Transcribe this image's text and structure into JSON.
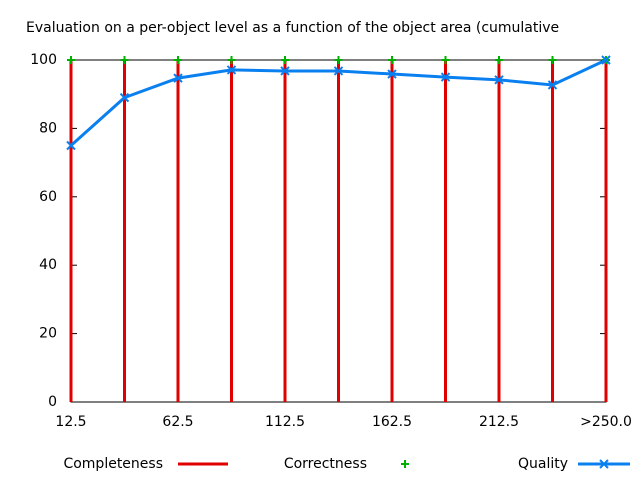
{
  "chart_data": {
    "type": "line",
    "title": "Evaluation on a per-object level as a function of the object area (cumulative",
    "categories": [
      "12.5",
      null,
      "62.5",
      null,
      "112.5",
      null,
      "162.5",
      null,
      "212.5",
      null,
      ">250.0"
    ],
    "ylim": [
      0,
      100
    ],
    "yticks": [
      0,
      20,
      40,
      60,
      80,
      100
    ],
    "series": [
      {
        "name": "Completeness",
        "color": "#e00000",
        "style": "impulses",
        "values": [
          100,
          100,
          100,
          100,
          100,
          100,
          100,
          100,
          100,
          100,
          100
        ]
      },
      {
        "name": "Correctness",
        "color": "#00b000",
        "style": "points",
        "values": [
          100,
          100,
          100,
          100,
          100,
          100,
          100,
          100,
          100,
          100,
          100
        ]
      },
      {
        "name": "Quality",
        "color": "#0a80f0",
        "style": "linespoints",
        "values": [
          75,
          89,
          94.7,
          97.1,
          96.8,
          96.8,
          95.9,
          95,
          94.2,
          92.7,
          100
        ]
      }
    ]
  }
}
